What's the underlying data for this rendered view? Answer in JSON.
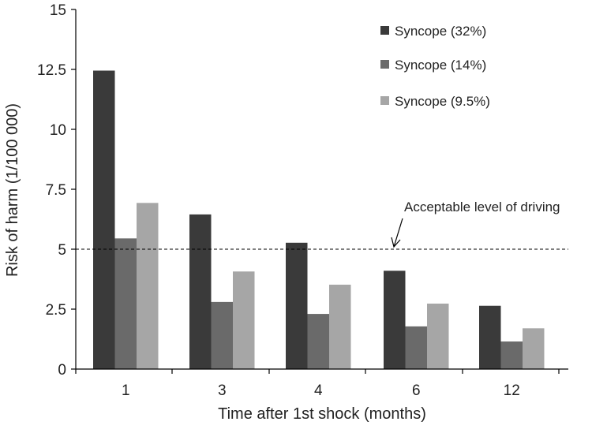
{
  "chart_data": {
    "type": "bar",
    "xlabel": "Time after 1st shock (months)",
    "ylabel": "Risk of harm (1/100 000)",
    "categories": [
      "1",
      "3",
      "4",
      "6",
      "12"
    ],
    "ylim": [
      0,
      15
    ],
    "yticks": [
      "0",
      "2.5",
      "5",
      "7.5",
      "10",
      "12.5",
      "15"
    ],
    "legend_position": "top-right",
    "grid": false,
    "series": [
      {
        "name": "Syncope (32%)",
        "color": "#3a3a3a",
        "values": [
          12.45,
          6.45,
          5.27,
          4.1,
          2.64
        ]
      },
      {
        "name": "Syncope (14%)",
        "color": "#6a6a6a",
        "values": [
          5.45,
          2.8,
          2.3,
          1.78,
          1.15
        ]
      },
      {
        "name": "Syncope (9.5%)",
        "color": "#a6a6a6",
        "values": [
          6.93,
          4.07,
          3.52,
          2.73,
          1.7
        ]
      }
    ],
    "reference_line": {
      "value": 5,
      "style": "dashed"
    },
    "annotation": {
      "text": "Acceptable level of driving"
    }
  }
}
